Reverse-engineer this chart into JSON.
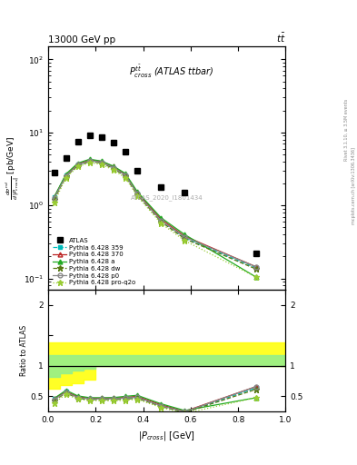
{
  "title_left": "13000 GeV pp",
  "title_right": "tt",
  "annotation": "P$_{cross}^{t\\bar{t}}$ (ATLAS ttbar)",
  "annotation2": "ATLAS_2020_I1801434",
  "right_label1": "Rivet 3.1.10, ≥ 3.5M events",
  "right_label2": "mcplots.cern.ch [arXiv:1306.3436]",
  "xlabel": "|P$_{cross}$| [GeV]",
  "xlim": [
    0,
    1.0
  ],
  "ylim_main": [
    0.07,
    150
  ],
  "ylim_ratio": [
    0.25,
    2.25
  ],
  "atlas_x": [
    0.025,
    0.075,
    0.125,
    0.175,
    0.225,
    0.275,
    0.325,
    0.375,
    0.475,
    0.575,
    0.875
  ],
  "atlas_y": [
    2.8,
    4.5,
    7.5,
    9.0,
    8.5,
    7.2,
    5.5,
    3.0,
    1.8,
    1.5,
    0.22
  ],
  "mc_x": [
    0.025,
    0.075,
    0.125,
    0.175,
    0.225,
    0.275,
    0.325,
    0.375,
    0.475,
    0.575,
    0.875
  ],
  "py359_y": [
    1.3,
    2.6,
    3.6,
    4.1,
    3.9,
    3.3,
    2.6,
    1.45,
    0.62,
    0.36,
    0.14
  ],
  "py359_color": "#00BBBB",
  "py359_ls": "dashed",
  "py359_marker": "s",
  "py359_mfc": "#00BBBB",
  "py370_y": [
    1.3,
    2.6,
    3.7,
    4.2,
    4.0,
    3.4,
    2.65,
    1.5,
    0.65,
    0.38,
    0.145
  ],
  "py370_color": "#BB2222",
  "py370_ls": "solid",
  "py370_marker": "^",
  "py370_mfc": "none",
  "pya_y": [
    1.3,
    2.7,
    3.8,
    4.3,
    4.05,
    3.45,
    2.75,
    1.55,
    0.68,
    0.4,
    0.105
  ],
  "pya_color": "#22AA22",
  "pya_ls": "solid",
  "pya_marker": "^",
  "pya_mfc": "#22AA22",
  "pydw_y": [
    1.2,
    2.5,
    3.5,
    4.0,
    3.8,
    3.2,
    2.5,
    1.4,
    0.6,
    0.35,
    0.135
  ],
  "pydw_color": "#557711",
  "pydw_ls": "dashed",
  "pydw_marker": "*",
  "pydw_mfc": "#557711",
  "pyp0_y": [
    1.25,
    2.55,
    3.6,
    4.1,
    3.9,
    3.3,
    2.6,
    1.45,
    0.62,
    0.37,
    0.145
  ],
  "pyp0_color": "#888888",
  "pyp0_ls": "solid",
  "pyp0_marker": "o",
  "pyp0_mfc": "none",
  "pyproq2o_y": [
    1.1,
    2.4,
    3.4,
    3.85,
    3.65,
    3.05,
    2.4,
    1.35,
    0.57,
    0.33,
    0.105
  ],
  "pyproq2o_color": "#99CC33",
  "pyproq2o_ls": "dotted",
  "pyproq2o_marker": "*",
  "pyproq2o_mfc": "#99CC33",
  "band_x_edges": [
    0.0,
    0.05,
    0.1,
    0.15,
    0.2,
    1.0
  ],
  "band_green_lo": [
    0.82,
    0.88,
    0.92,
    0.95,
    1.0,
    1.0
  ],
  "band_green_hi": [
    1.18,
    1.18,
    1.18,
    1.18,
    1.18,
    1.18
  ],
  "band_yellow_lo": [
    0.62,
    0.68,
    0.72,
    0.78,
    1.0,
    1.0
  ],
  "band_yellow_hi": [
    1.38,
    1.38,
    1.38,
    1.38,
    1.38,
    1.38
  ]
}
